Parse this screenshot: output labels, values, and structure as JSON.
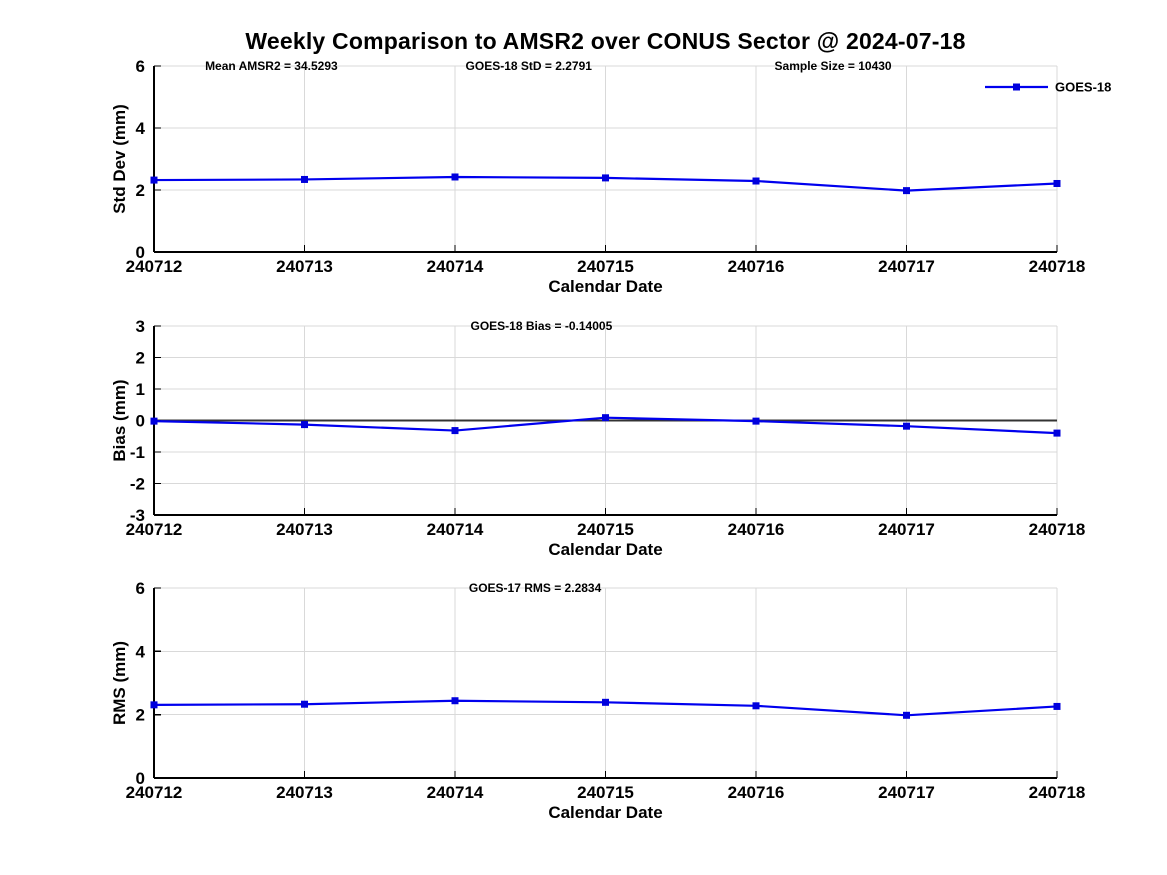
{
  "title": "Weekly Comparison to AMSR2 over CONUS Sector @ 2024-07-18",
  "colors": {
    "line": "#0000ee",
    "marker": "#0000dd",
    "grid": "#d9d9d9",
    "axis": "#000000",
    "zero_line": "#333333",
    "text": "#000000"
  },
  "chart_data": [
    {
      "type": "line",
      "name": "std-dev",
      "annotations": [
        "Mean AMSR2 = 34.5293",
        "GOES-18 StD = 2.2791",
        "Sample Size = 10430"
      ],
      "categories": [
        "240712",
        "240713",
        "240714",
        "240715",
        "240716",
        "240717",
        "240718"
      ],
      "series": [
        {
          "name": "GOES-18",
          "values": [
            2.32,
            2.34,
            2.42,
            2.39,
            2.29,
            1.98,
            2.21
          ]
        }
      ],
      "xlabel": "Calendar Date",
      "ylabel": "Std Dev (mm)",
      "ylim": [
        0,
        6
      ],
      "yticks": [
        0,
        2,
        4,
        6
      ],
      "grid": true,
      "legend": {
        "label": "GOES-18",
        "position": "top-right"
      },
      "marker": "square",
      "zero_line": false
    },
    {
      "type": "line",
      "name": "bias",
      "annotations": [
        "GOES-18 Bias  = -0.14005"
      ],
      "categories": [
        "240712",
        "240713",
        "240714",
        "240715",
        "240716",
        "240717",
        "240718"
      ],
      "series": [
        {
          "name": "GOES-18",
          "values": [
            -0.02,
            -0.13,
            -0.32,
            0.09,
            -0.02,
            -0.18,
            -0.4
          ]
        }
      ],
      "xlabel": "Calendar Date",
      "ylabel": "Bias (mm)",
      "ylim": [
        -3,
        3
      ],
      "yticks": [
        -3,
        -2,
        -1,
        0,
        1,
        2,
        3
      ],
      "grid": true,
      "legend": null,
      "marker": "square",
      "zero_line": true
    },
    {
      "type": "line",
      "name": "rms",
      "annotations": [
        "GOES-17 RMS = 2.2834"
      ],
      "categories": [
        "240712",
        "240713",
        "240714",
        "240715",
        "240716",
        "240717",
        "240718"
      ],
      "series": [
        {
          "name": "GOES-18",
          "values": [
            2.31,
            2.33,
            2.44,
            2.39,
            2.28,
            1.98,
            2.26
          ]
        }
      ],
      "xlabel": "Calendar Date",
      "ylabel": "RMS (mm)",
      "ylim": [
        0,
        6
      ],
      "yticks": [
        0,
        2,
        4,
        6
      ],
      "grid": true,
      "legend": null,
      "marker": "square",
      "zero_line": false
    }
  ]
}
